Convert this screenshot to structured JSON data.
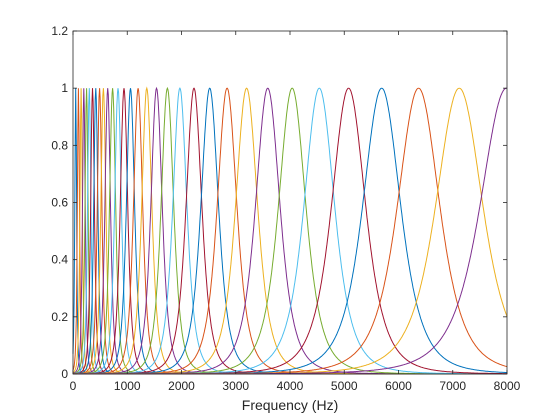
{
  "chart_data": {
    "type": "line",
    "title": "",
    "xlabel": "Frequency (Hz)",
    "ylabel": "",
    "xlim": [
      0,
      8000
    ],
    "ylim": [
      0,
      1.2
    ],
    "grid": false,
    "legend": "none",
    "x_ticks": [
      0,
      1000,
      2000,
      3000,
      4000,
      5000,
      6000,
      7000,
      8000
    ],
    "x_tick_labels": [
      "0",
      "1000",
      "2000",
      "3000",
      "4000",
      "5000",
      "6000",
      "7000",
      "8000"
    ],
    "y_ticks": [
      0,
      0.2,
      0.4,
      0.6,
      0.8,
      1,
      1.2
    ],
    "y_tick_labels": [
      "0",
      "0.2",
      "0.4",
      "0.6",
      "0.8",
      "1",
      "1.2"
    ],
    "colors": [
      "#0072BD",
      "#D95319",
      "#EDB120",
      "#7E2F8E",
      "#77AC30",
      "#4DBEEE",
      "#A2142F"
    ],
    "peak_value": 1,
    "center_frequencies": [
      50,
      100,
      150,
      200,
      250,
      300,
      360,
      420,
      490,
      560,
      640,
      730,
      830,
      940,
      1060,
      1200,
      1360,
      1540,
      1740,
      1970,
      2230,
      2520,
      2840,
      3200,
      3590,
      4040,
      4540,
      5080,
      5690,
      6370,
      7120,
      7990
    ]
  }
}
